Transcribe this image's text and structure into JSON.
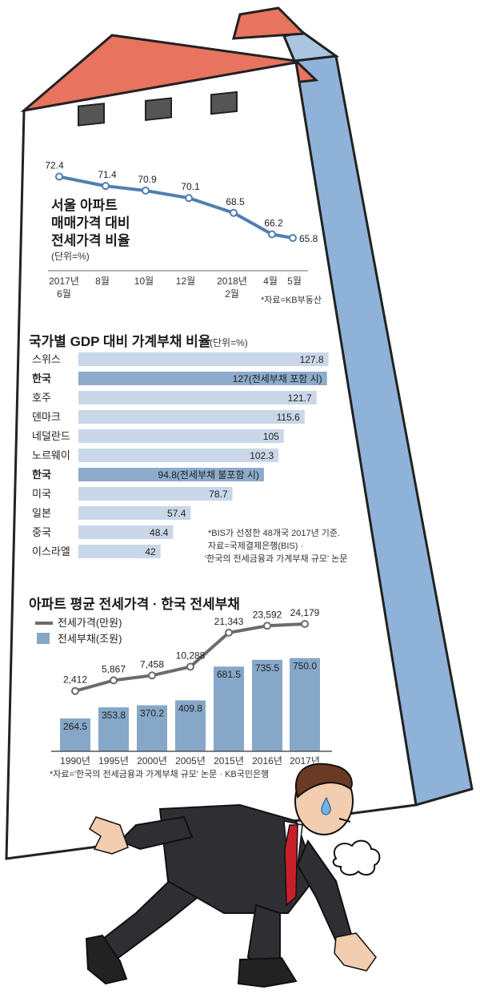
{
  "colors": {
    "roof": "#E8735E",
    "roof_dark": "#B94A3A",
    "wall_side": "#8FB3D8",
    "bar": "#C9D7E8",
    "bar_highlight": "#8DABCB",
    "col_bar": "#86A7C8",
    "line": "#4F7FB0",
    "line2": "#6B6B6B"
  },
  "chart_data": [
    {
      "type": "line",
      "title_lines": [
        "서울 아파트",
        "매매가격 대비",
        "전세가격 비율"
      ],
      "unit": "(단위=%)",
      "x": [
        "2017년\n6월",
        "8월",
        "10월",
        "12월",
        "2018년\n2월",
        "4월",
        "5월"
      ],
      "values": [
        72.4,
        71.4,
        70.9,
        70.1,
        68.5,
        66.2,
        65.8
      ],
      "ylim": [
        64,
        74
      ],
      "source": "*자료=KB부동산"
    },
    {
      "type": "bar",
      "orientation": "horizontal",
      "title": "국가별 GDP 대비 가계부채 비율",
      "unit": "(단위=%)",
      "categories": [
        "스위스",
        "한국",
        "호주",
        "덴마크",
        "네덜란드",
        "노르웨이",
        "한국",
        "미국",
        "일본",
        "중국",
        "이스라엘"
      ],
      "values": [
        127.8,
        127,
        121.7,
        115.6,
        105,
        102.3,
        94.8,
        78.7,
        57.4,
        48.4,
        42
      ],
      "value_labels": [
        "127.8",
        "127(전세부채 포함 시)",
        "121.7",
        "115.6",
        "105",
        "102.3",
        "94.8(전세부채 불포함 시)",
        "78.7",
        "57.4",
        "48.4",
        "42"
      ],
      "highlight": [
        false,
        true,
        false,
        false,
        false,
        false,
        true,
        false,
        false,
        false,
        false
      ],
      "xlim": [
        0,
        130
      ],
      "notes": [
        "*BIS가 선정한 48개국 2017년 기준.",
        "자료=국제결제은행(BIS) ·",
        "'한국의 전세금융과 가계부채 규모' 논문"
      ]
    },
    {
      "type": "bar+line",
      "title": "아파트 평균 전세가격 · 한국 전세부채",
      "categories": [
        "1990년",
        "1995년",
        "2000년",
        "2005년",
        "2015년",
        "2016년",
        "2017년"
      ],
      "series": [
        {
          "name": "전세가격(만원)",
          "type": "line",
          "values": [
            2412,
            5867,
            7458,
            10288,
            21343,
            23592,
            24179
          ],
          "labels": [
            "2,412",
            "5,867",
            "7,458",
            "10,288",
            "21,343",
            "23,592",
            "24,179"
          ]
        },
        {
          "name": "전세부채(조원)",
          "type": "bar",
          "values": [
            264.5,
            353.8,
            370.2,
            409.8,
            681.5,
            735.5,
            750.0
          ],
          "labels": [
            "264.5",
            "353.8",
            "370.2",
            "409.8",
            "681.5",
            "735.5",
            "750.0"
          ]
        }
      ],
      "source": "*자료='한국의 전세금융과 가계부채 규모' 논문 · KB국민은행"
    }
  ]
}
